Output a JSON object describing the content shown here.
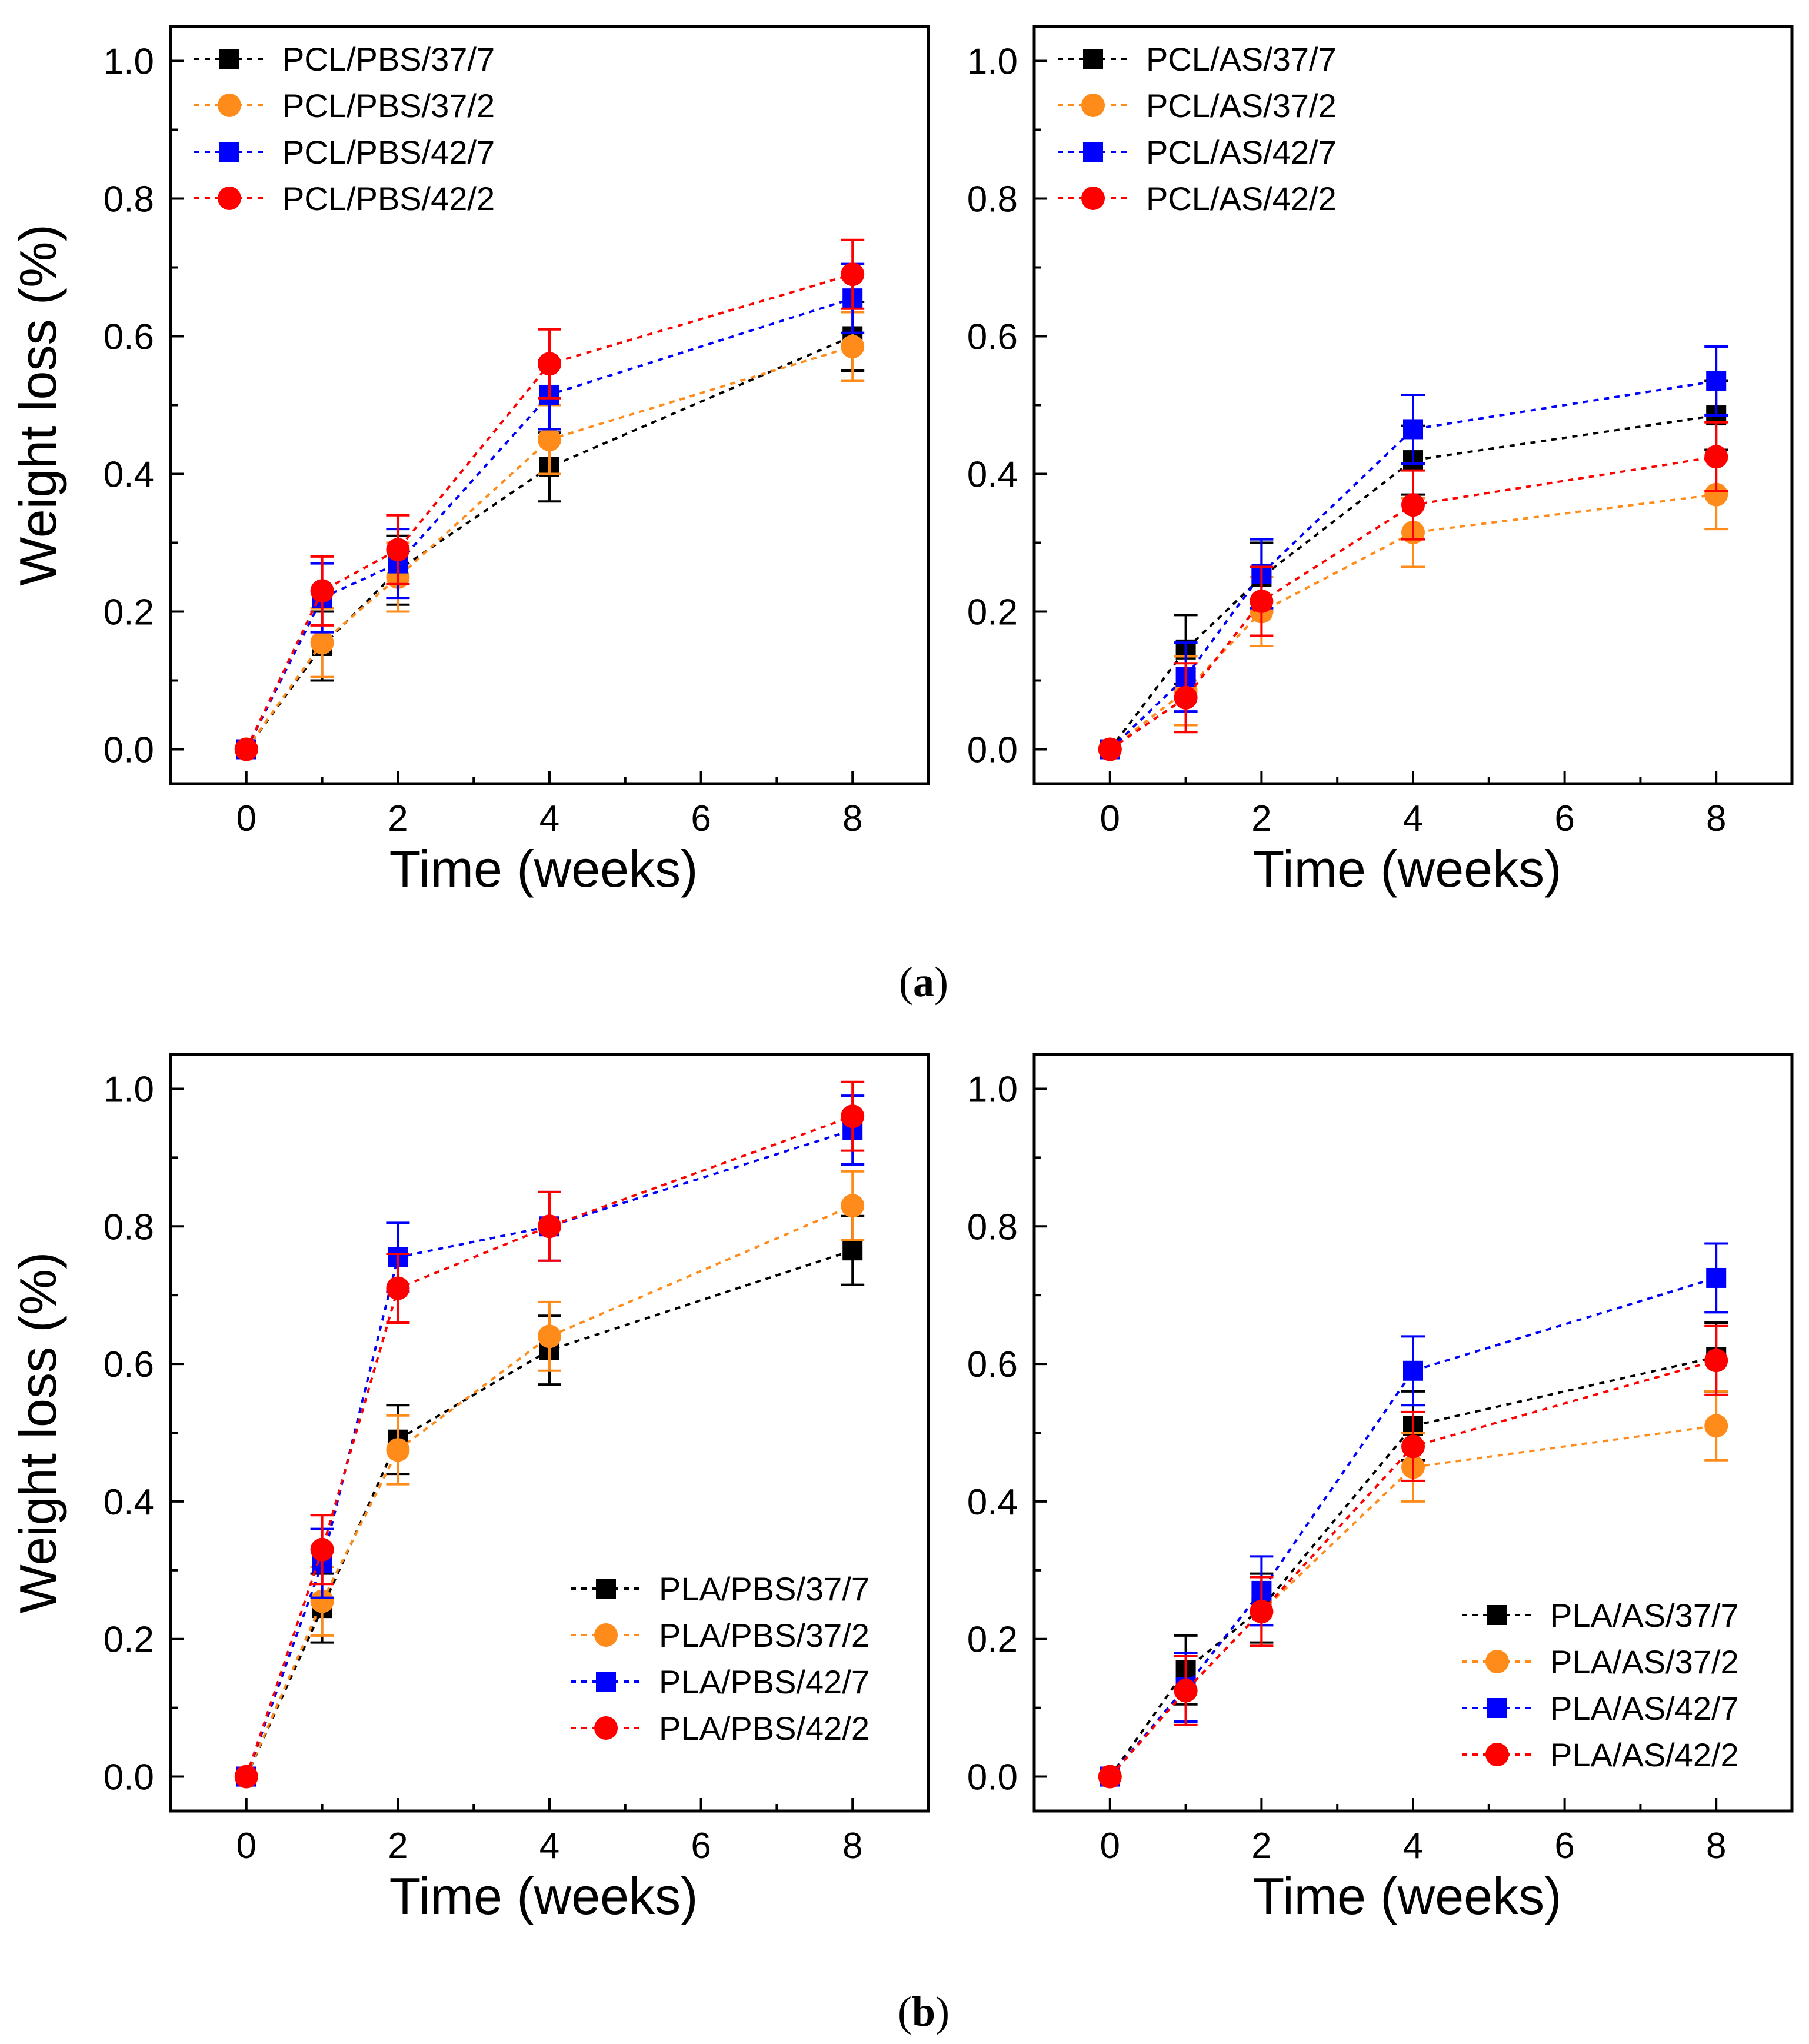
{
  "figure": {
    "caption_a_open": "(",
    "caption_a_letter": "a",
    "caption_a_close": ")",
    "caption_b_open": "(",
    "caption_b_letter": "b",
    "caption_b_close": ")"
  },
  "chart_data": [
    {
      "id": "pcl-pbs",
      "type": "line",
      "title": "",
      "xlabel": "Time (weeks)",
      "ylabel": "Weight loss (%)",
      "xlim": [
        -1,
        9
      ],
      "ylim": [
        -0.05,
        1.05
      ],
      "xticks": [
        "0",
        "2",
        "4",
        "6",
        "8"
      ],
      "yticks": [
        "0.0",
        "0.2",
        "0.4",
        "0.6",
        "0.8",
        "1.0"
      ],
      "legend_position": "top-left",
      "x": [
        0,
        1,
        2,
        4,
        8
      ],
      "series": [
        {
          "name": "PCL/PBS/37/7",
          "color": "#000000",
          "marker": "square",
          "values": [
            0,
            0.15,
            0.26,
            0.41,
            0.6
          ],
          "errors": [
            0,
            0.05,
            0.05,
            0.05,
            0.05
          ]
        },
        {
          "name": "PCL/PBS/37/2",
          "color": "#FF8C1A",
          "marker": "circle",
          "values": [
            0,
            0.155,
            0.25,
            0.45,
            0.585
          ],
          "errors": [
            0,
            0.05,
            0.05,
            0.05,
            0.05
          ]
        },
        {
          "name": "PCL/PBS/42/7",
          "color": "#0000FF",
          "marker": "square",
          "values": [
            0,
            0.22,
            0.27,
            0.515,
            0.655
          ],
          "errors": [
            0,
            0.05,
            0.05,
            0.05,
            0.05
          ]
        },
        {
          "name": "PCL/PBS/42/2",
          "color": "#FF0000",
          "marker": "circle",
          "values": [
            0,
            0.23,
            0.29,
            0.56,
            0.69
          ],
          "errors": [
            0,
            0.05,
            0.05,
            0.05,
            0.05
          ]
        }
      ]
    },
    {
      "id": "pcl-as",
      "type": "line",
      "title": "",
      "xlabel": "Time (weeks)",
      "ylabel": "",
      "xlim": [
        -1,
        9
      ],
      "ylim": [
        -0.05,
        1.05
      ],
      "xticks": [
        "0",
        "2",
        "4",
        "6",
        "8"
      ],
      "yticks": [
        "0.0",
        "0.2",
        "0.4",
        "0.6",
        "0.8",
        "1.0"
      ],
      "legend_position": "top-left",
      "x": [
        0,
        1,
        2,
        4,
        8
      ],
      "series": [
        {
          "name": "PCL/AS/37/7",
          "color": "#000000",
          "marker": "square",
          "values": [
            0,
            0.145,
            0.25,
            0.42,
            0.485
          ],
          "errors": [
            0,
            0.05,
            0.05,
            0.05,
            0.05
          ]
        },
        {
          "name": "PCL/AS/37/2",
          "color": "#FF8C1A",
          "marker": "circle",
          "values": [
            0,
            0.085,
            0.2,
            0.315,
            0.37
          ],
          "errors": [
            0,
            0.05,
            0.05,
            0.05,
            0.05
          ]
        },
        {
          "name": "PCL/AS/42/7",
          "color": "#0000FF",
          "marker": "square",
          "values": [
            0,
            0.105,
            0.255,
            0.465,
            0.535
          ],
          "errors": [
            0,
            0.05,
            0.05,
            0.05,
            0.05
          ]
        },
        {
          "name": "PCL/AS/42/2",
          "color": "#FF0000",
          "marker": "circle",
          "values": [
            0,
            0.075,
            0.215,
            0.355,
            0.425
          ],
          "errors": [
            0,
            0.05,
            0.05,
            0.05,
            0.05
          ]
        }
      ]
    },
    {
      "id": "pla-pbs",
      "type": "line",
      "title": "",
      "xlabel": "Time (weeks)",
      "ylabel": "Weight loss (%)",
      "xlim": [
        -1,
        9
      ],
      "ylim": [
        -0.05,
        1.05
      ],
      "xticks": [
        "0",
        "2",
        "4",
        "6",
        "8"
      ],
      "yticks": [
        "0.0",
        "0.2",
        "0.4",
        "0.6",
        "0.8",
        "1.0"
      ],
      "legend_position": "bottom-right",
      "x": [
        0,
        1,
        2,
        4,
        8
      ],
      "series": [
        {
          "name": "PLA/PBS/37/7",
          "color": "#000000",
          "marker": "square",
          "values": [
            0,
            0.245,
            0.49,
            0.62,
            0.765
          ],
          "errors": [
            0,
            0.05,
            0.05,
            0.05,
            0.05
          ]
        },
        {
          "name": "PLA/PBS/37/2",
          "color": "#FF8C1A",
          "marker": "circle",
          "values": [
            0,
            0.255,
            0.475,
            0.64,
            0.83
          ],
          "errors": [
            0,
            0.05,
            0.05,
            0.05,
            0.05
          ]
        },
        {
          "name": "PLA/PBS/42/7",
          "color": "#0000FF",
          "marker": "square",
          "values": [
            0,
            0.31,
            0.755,
            0.8,
            0.94
          ],
          "errors": [
            0,
            0.05,
            0.05,
            0.05,
            0.05
          ]
        },
        {
          "name": "PLA/PBS/42/2",
          "color": "#FF0000",
          "marker": "circle",
          "values": [
            0,
            0.33,
            0.71,
            0.8,
            0.96
          ],
          "errors": [
            0,
            0.05,
            0.05,
            0.05,
            0.05
          ]
        }
      ]
    },
    {
      "id": "pla-as",
      "type": "line",
      "title": "",
      "xlabel": "Time (weeks)",
      "ylabel": "",
      "xlim": [
        -1,
        9
      ],
      "ylim": [
        -0.05,
        1.05
      ],
      "xticks": [
        "0",
        "2",
        "4",
        "6",
        "8"
      ],
      "yticks": [
        "0.0",
        "0.2",
        "0.4",
        "0.6",
        "0.8",
        "1.0"
      ],
      "legend_position": "bottom-right",
      "x": [
        0,
        1,
        2,
        4,
        8
      ],
      "series": [
        {
          "name": "PLA/AS/37/7",
          "color": "#000000",
          "marker": "square",
          "values": [
            0,
            0.155,
            0.245,
            0.51,
            0.61
          ],
          "errors": [
            0,
            0.05,
            0.05,
            0.05,
            0.05
          ]
        },
        {
          "name": "PLA/AS/37/2",
          "color": "#FF8C1A",
          "marker": "circle",
          "values": [
            0,
            0.125,
            0.24,
            0.45,
            0.51
          ],
          "errors": [
            0,
            0.05,
            0.05,
            0.05,
            0.05
          ]
        },
        {
          "name": "PLA/AS/42/7",
          "color": "#0000FF",
          "marker": "square",
          "values": [
            0,
            0.13,
            0.27,
            0.59,
            0.725
          ],
          "errors": [
            0,
            0.05,
            0.05,
            0.05,
            0.05
          ]
        },
        {
          "name": "PLA/AS/42/2",
          "color": "#FF0000",
          "marker": "circle",
          "values": [
            0,
            0.125,
            0.24,
            0.48,
            0.605
          ],
          "errors": [
            0,
            0.05,
            0.05,
            0.05,
            0.05
          ]
        }
      ]
    }
  ]
}
